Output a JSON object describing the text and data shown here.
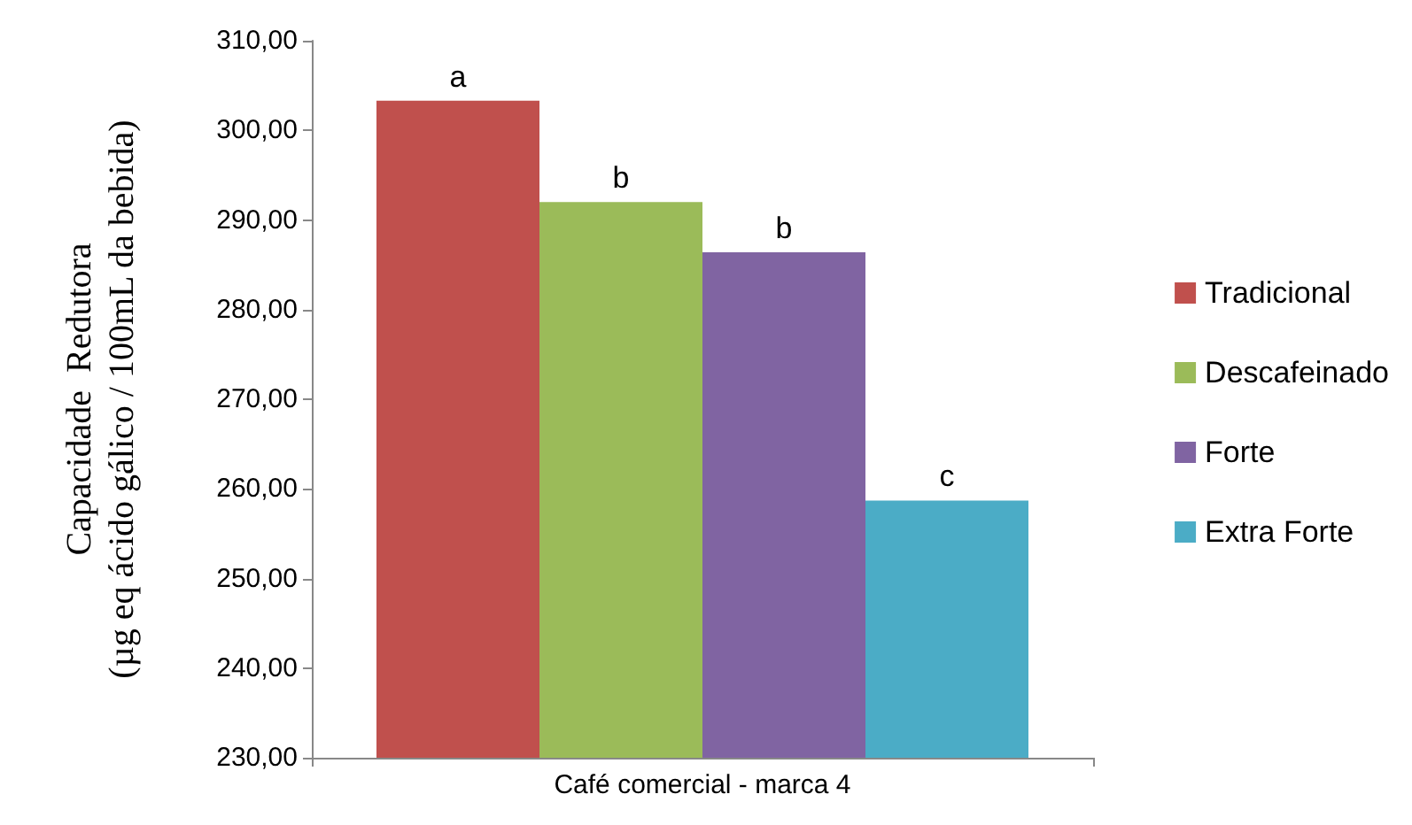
{
  "chart_data": {
    "type": "bar",
    "ylabel": "Capacidade  Redutora\n(µg eq ácido gálico / 100mL da bebida)",
    "categories": [
      "Café comercial - marca 4"
    ],
    "series": [
      {
        "name": "Tradicional",
        "color": "#c0504d",
        "values": [
          303.3
        ],
        "value_labels": [
          "a"
        ]
      },
      {
        "name": "Descafeinado",
        "color": "#9bbb59",
        "values": [
          292.0
        ],
        "value_labels": [
          "b"
        ]
      },
      {
        "name": "Forte",
        "color": "#8064a2",
        "values": [
          286.4
        ],
        "value_labels": [
          "b"
        ]
      },
      {
        "name": "Extra Forte",
        "color": "#4bacc6",
        "values": [
          258.7
        ],
        "value_labels": [
          "c"
        ]
      }
    ],
    "ylim": [
      230,
      310
    ],
    "yticks": [
      {
        "value": 230,
        "label": "230,00"
      },
      {
        "value": 240,
        "label": "240,00"
      },
      {
        "value": 250,
        "label": "250,00"
      },
      {
        "value": 260,
        "label": "260,00"
      },
      {
        "value": 270,
        "label": "270,00"
      },
      {
        "value": 280,
        "label": "280,00"
      },
      {
        "value": 290,
        "label": "290,00"
      },
      {
        "value": 300,
        "label": "300,00"
      },
      {
        "value": 310,
        "label": "310,00"
      }
    ],
    "grid": false,
    "legend": "right"
  }
}
